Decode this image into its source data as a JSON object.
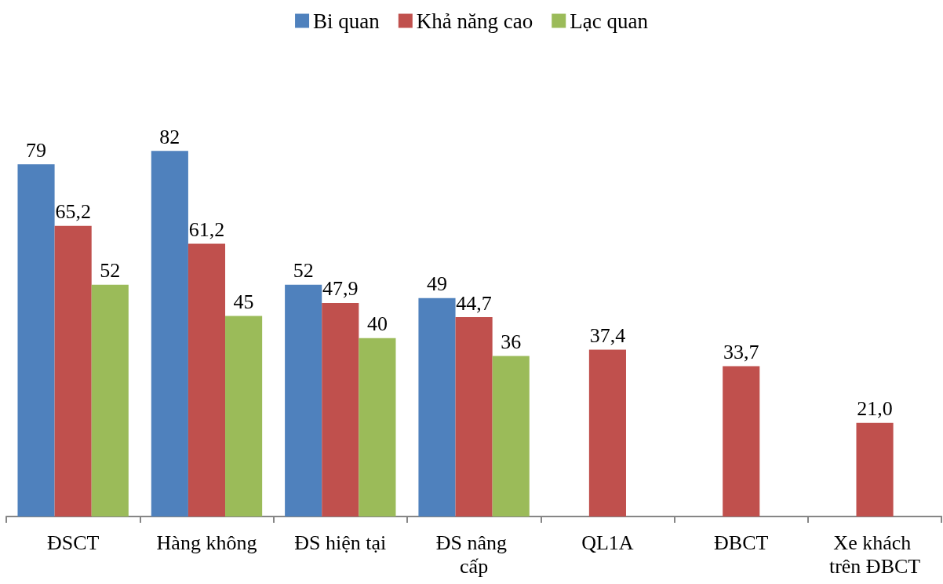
{
  "chart_data": {
    "type": "bar",
    "categories": [
      "ĐSCT",
      "Hàng không",
      "ĐS hiện tại",
      "ĐS nâng cấp",
      "QL1A",
      "ĐBCT",
      "Xe khách trên ĐBCT"
    ],
    "series": [
      {
        "name": "Bi quan",
        "color": "#4f81bd",
        "values": [
          79,
          82,
          52,
          49,
          null,
          null,
          null
        ],
        "value_labels": [
          "79",
          "82",
          "52",
          "49",
          null,
          null,
          null
        ]
      },
      {
        "name": "Khả năng cao",
        "color": "#c0504d",
        "values": [
          65.2,
          61.2,
          47.9,
          44.7,
          37.4,
          33.7,
          21.0
        ],
        "value_labels": [
          "65,2",
          "61,2",
          "47,9",
          "44,7",
          "37,4",
          "33,7",
          "21,0"
        ]
      },
      {
        "name": "Lạc quan",
        "color": "#9bbb59",
        "values": [
          52,
          45,
          40,
          36,
          null,
          null,
          null
        ],
        "value_labels": [
          "52",
          "45",
          "40",
          "36",
          null,
          null,
          null
        ]
      }
    ],
    "legend": "top",
    "grid": false
  }
}
